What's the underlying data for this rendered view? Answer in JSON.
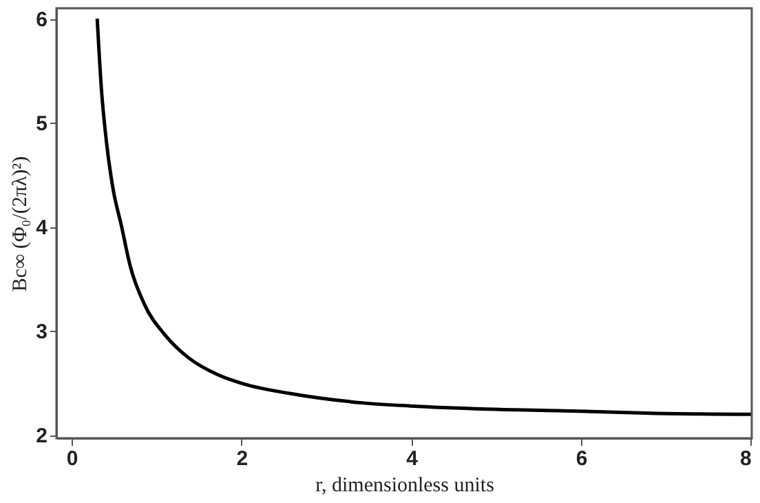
{
  "chart_data": {
    "type": "line",
    "xlabel": "r, dimensionless units",
    "ylabel": "Bc∞ (Φ₀/(2πλ)²)",
    "series": [
      {
        "color": "#000000",
        "x": [
          0.3,
          0.35,
          0.41,
          0.49,
          0.58,
          0.69,
          0.86,
          1.09,
          1.38,
          1.72,
          2.03,
          2.57,
          3.42,
          3.99,
          4.9,
          5.98,
          6.83,
          8.0
        ],
        "values": [
          6.0,
          5.32,
          4.81,
          4.35,
          4.03,
          3.62,
          3.25,
          2.97,
          2.74,
          2.58,
          2.49,
          2.4,
          2.31,
          2.28,
          2.25,
          2.23,
          2.21,
          2.2
        ]
      }
    ],
    "xlim": [
      -0.18,
      8.01
    ],
    "ylim": [
      1.97,
      6.1
    ],
    "xticks": [
      0,
      2,
      4,
      6,
      8
    ],
    "yticks": [
      2,
      3,
      4,
      5,
      6
    ],
    "grid": false,
    "marker": "none",
    "line_style": "solid"
  }
}
